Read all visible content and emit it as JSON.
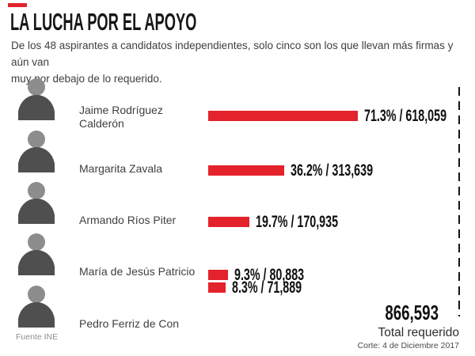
{
  "header": {
    "title": "LA LUCHA POR EL APOYO",
    "subtitle": "De los 48 aspirantes a candidatos independientes, solo cinco son los que llevan más firmas y aún van\nmuy por debajo de lo requerido."
  },
  "source": "Fuente INE",
  "colors": {
    "accent_red": "#e4222b",
    "bar_red": "#e4222b",
    "title_black": "#161616"
  },
  "chart_data": {
    "type": "bar",
    "orientation": "horizontal",
    "title": "LA LUCHA POR EL APOYO",
    "categories": [
      "Jaime Rodríguez Calderón",
      "Margarita Zavala",
      "Armando Ríos Piter",
      "María de Jesús Patricio",
      "Pedro Ferriz de Con"
    ],
    "values_pct": [
      71.3,
      36.2,
      19.7,
      9.3,
      8.3
    ],
    "values_signatures": [
      618059,
      313639,
      170935,
      80883,
      71889
    ],
    "xlim_pct": [
      0,
      100
    ],
    "grid": false,
    "legend": false,
    "rows": [
      {
        "name": "Jaime Rodríguez\nCalderón",
        "pct": 71.3,
        "signatures": "618,059",
        "label": "71.3% / 618,059"
      },
      {
        "name": "Margarita Zavala",
        "pct": 36.2,
        "signatures": "313,639",
        "label": "36.2% / 313,639"
      },
      {
        "name": "Armando Ríos Piter",
        "pct": 19.7,
        "signatures": "170,935",
        "label": "19.7% / 170,935"
      },
      {
        "name": "María de Jesús Patricio",
        "pct": 9.3,
        "signatures": "80,883",
        "label": "9.3% / 80,883"
      },
      {
        "name": "Pedro Ferriz de Con",
        "pct": 8.3,
        "signatures": "71,889",
        "label": "8.3% / 71,889"
      }
    ],
    "total_required": {
      "value": "866,593",
      "label": "Total requerido",
      "note": "Corte: 4 de Diciembre 2017"
    }
  }
}
